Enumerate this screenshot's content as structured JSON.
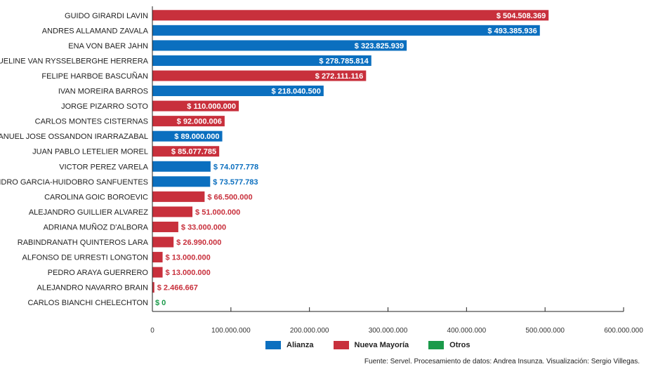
{
  "chart_data": {
    "type": "bar",
    "orientation": "horizontal",
    "categories": [
      "GUIDO GIRARDI LAVIN",
      "ANDRES ALLAMAND ZAVALA",
      "ENA VON BAER JAHN",
      "JACQUELINE VAN RYSSELBERGHE HERRERA",
      "FELIPE HARBOE BASCUÑAN",
      "IVAN MOREIRA BARROS",
      "JORGE PIZARRO SOTO",
      "CARLOS MONTES CISTERNAS",
      "MANUEL JOSE OSSANDON IRARRAZABAL",
      "JUAN PABLO LETELIER MOREL",
      "VICTOR PEREZ VARELA",
      "ALEJANDRO GARCIA-HUIDOBRO SANFUENTES",
      "CAROLINA GOIC BOROEVIC",
      "ALEJANDRO GUILLIER ALVAREZ",
      "ADRIANA MUÑOZ D'ALBORA",
      "RABINDRANATH QUINTEROS LARA",
      "ALFONSO DE URRESTI LONGTON",
      "PEDRO ARAYA GUERRERO",
      "ALEJANDRO NAVARRO BRAIN",
      "CARLOS BIANCHI CHELECHTON"
    ],
    "values": [
      504508369,
      493385936,
      323825939,
      278785814,
      272111116,
      218040500,
      110000000,
      92000006,
      89000000,
      85077785,
      74077778,
      73577783,
      66500000,
      51000000,
      33000000,
      26990000,
      13000000,
      13000000,
      2466667,
      0
    ],
    "value_labels": [
      "$ 504.508.369",
      "$ 493.385.936",
      "$ 323.825.939",
      "$ 278.785.814",
      "$ 272.111.116",
      "$ 218.040.500",
      "$ 110.000.000",
      "$ 92.000.006",
      "$ 89.000.000",
      "$ 85.077.785",
      "$ 74.077.778",
      "$ 73.577.783",
      "$ 66.500.000",
      "$ 51.000.000",
      "$ 33.000.000",
      "$ 26.990.000",
      "$ 13.000.000",
      "$ 13.000.000",
      "$ 2.466.667",
      "$ 0"
    ],
    "groups": [
      "Nueva Mayoría",
      "Alianza",
      "Alianza",
      "Alianza",
      "Nueva Mayoría",
      "Alianza",
      "Nueva Mayoría",
      "Nueva Mayoría",
      "Alianza",
      "Nueva Mayoría",
      "Alianza",
      "Alianza",
      "Nueva Mayoría",
      "Nueva Mayoría",
      "Nueva Mayoría",
      "Nueva Mayoría",
      "Nueva Mayoría",
      "Nueva Mayoría",
      "Nueva Mayoría",
      "Otros"
    ],
    "xlim": [
      0,
      600000000
    ],
    "xticks": [
      0,
      100000000,
      200000000,
      300000000,
      400000000,
      500000000,
      600000000
    ],
    "xtick_labels": [
      "0",
      "100.000.000",
      "200.000.000",
      "300.000.000",
      "400.000.000",
      "500.000.000",
      "600.000.000"
    ],
    "legend": [
      {
        "name": "Alianza",
        "color": "#0b6fbf"
      },
      {
        "name": "Nueva Mayoría",
        "color": "#c8303c"
      },
      {
        "name": "Otros",
        "color": "#1a9a4a"
      }
    ],
    "legend_position": "bottom-center",
    "grid": false,
    "title": "",
    "xlabel": "",
    "ylabel": ""
  },
  "source": "Fuente: Servel. Procesamiento de datos: Andrea Insunza. Visualización: Sergio Villegas."
}
